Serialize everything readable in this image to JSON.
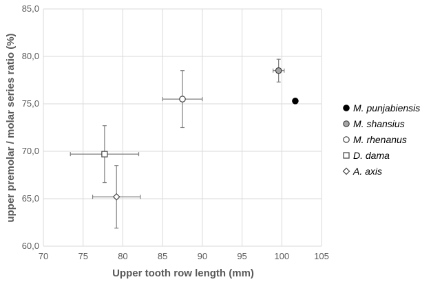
{
  "chart_data": {
    "type": "scatter",
    "title": "",
    "xlabel": "Upper tooth row length (mm)",
    "ylabel": "upper premolar / molar series ratio (%)",
    "xlim": [
      70,
      105
    ],
    "ylim": [
      60,
      85
    ],
    "x_tick_labels": [
      "70",
      "75",
      "80",
      "85",
      "90",
      "95",
      "100",
      "105"
    ],
    "y_tick_labels": [
      "60,0",
      "65,0",
      "70,0",
      "75,0",
      "80,0",
      "85,0"
    ],
    "grid": true,
    "legend_position": "right",
    "series": [
      {
        "name": "M. punjabiensis",
        "marker": "circle",
        "fill": "#000000",
        "points": [
          {
            "x": 101.7,
            "y": 75.3,
            "xerr": null,
            "yerr": null
          }
        ]
      },
      {
        "name": "M. shansius",
        "marker": "circle",
        "fill": "#a6a6a6",
        "points": [
          {
            "x": 99.6,
            "y": 78.5,
            "xerr": 0.7,
            "yerr": 1.2
          }
        ]
      },
      {
        "name": "M. rhenanus",
        "marker": "circle",
        "fill": "#ffffff",
        "points": [
          {
            "x": 87.5,
            "y": 75.5,
            "xerr": 2.5,
            "yerr": 3.0
          }
        ]
      },
      {
        "name": "D. dama",
        "marker": "square",
        "fill": "#ffffff",
        "points": [
          {
            "x": 77.7,
            "y": 69.7,
            "xerr": 4.3,
            "yerr": 3.0
          }
        ]
      },
      {
        "name": "A. axis",
        "marker": "diamond",
        "fill": "#ffffff",
        "points": [
          {
            "x": 79.2,
            "y": 65.2,
            "xerr": 3.0,
            "yerr": 3.3
          }
        ]
      }
    ]
  }
}
